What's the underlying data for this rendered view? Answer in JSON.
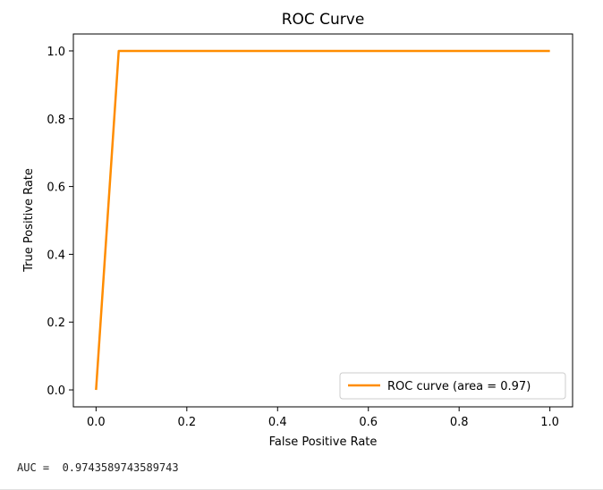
{
  "chart_data": {
    "type": "line",
    "title": "ROC Curve",
    "xlabel": "False Positive Rate",
    "ylabel": "True Positive Rate",
    "xlim": [
      -0.05,
      1.05
    ],
    "ylim": [
      -0.05,
      1.05
    ],
    "xticks": [
      "0.0",
      "0.2",
      "0.4",
      "0.6",
      "0.8",
      "1.0"
    ],
    "xtick_values": [
      0.0,
      0.2,
      0.4,
      0.6,
      0.8,
      1.0
    ],
    "yticks": [
      "0.0",
      "0.2",
      "0.4",
      "0.6",
      "0.8",
      "1.0"
    ],
    "ytick_values": [
      0.0,
      0.2,
      0.4,
      0.6,
      0.8,
      1.0
    ],
    "grid": false,
    "legend_position": "lower-right",
    "series": [
      {
        "name": "ROC curve (area = 0.97)",
        "color": "#ff8c00",
        "x": [
          0.0,
          0.05,
          1.0
        ],
        "y": [
          0.0,
          1.0,
          1.0
        ]
      }
    ]
  },
  "output": {
    "auc_text": "AUC =  0.9743589743589743"
  }
}
